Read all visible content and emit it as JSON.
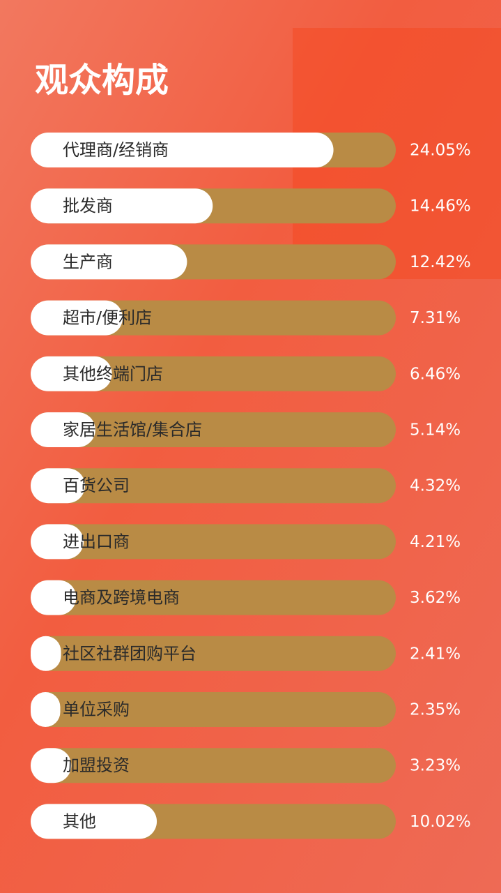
{
  "chart_data": {
    "type": "bar",
    "orientation": "horizontal",
    "title": "观众构成",
    "categories": [
      "代理商/经销商",
      "批发商",
      "生产商",
      "超市/便利店",
      "其他终端门店",
      "家居生活馆/集合店",
      "百货公司",
      "进出口商",
      "电商及跨境电商",
      "社区社群团购平台",
      "单位采购",
      "加盟投资",
      "其他"
    ],
    "values": [
      24.05,
      14.46,
      12.42,
      7.31,
      6.46,
      5.14,
      4.32,
      4.21,
      3.62,
      2.41,
      2.35,
      3.23,
      10.02
    ],
    "value_labels": [
      "24.05%",
      "14.46%",
      "12.42%",
      "7.31%",
      "6.46%",
      "5.14%",
      "4.32%",
      "4.21%",
      "3.62%",
      "2.41%",
      "2.35%",
      "3.23%",
      "10.02%"
    ],
    "color": "#ffffff",
    "track_color": "#b98b45",
    "xlim": [
      0,
      29
    ]
  }
}
